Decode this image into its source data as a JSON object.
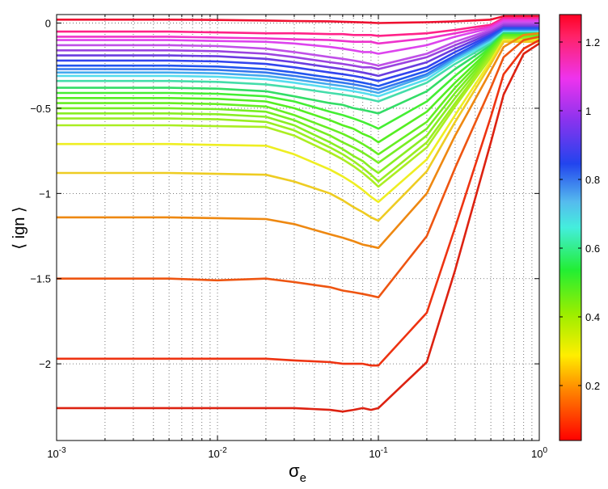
{
  "chart_data": {
    "type": "line",
    "xlabel_main": "σ",
    "xlabel_sub": "e",
    "ylabel": "⟨ ign ⟩",
    "xscale": "log",
    "xlim": [
      0.001,
      1
    ],
    "ylim": [
      -2.45,
      0.05
    ],
    "grid": true,
    "x_ticks": [
      {
        "value": 0.001,
        "base": "10",
        "exp": "-3"
      },
      {
        "value": 0.01,
        "base": "10",
        "exp": "-2"
      },
      {
        "value": 0.1,
        "base": "10",
        "exp": "-1"
      },
      {
        "value": 1,
        "base": "10",
        "exp": "0"
      }
    ],
    "y_ticks": [
      {
        "value": 0,
        "label": "0"
      },
      {
        "value": -0.5,
        "label": "−0.5"
      },
      {
        "value": -1,
        "label": "−1"
      },
      {
        "value": -1.5,
        "label": "−1.5"
      },
      {
        "value": -2,
        "label": "−2"
      }
    ],
    "colorbar": {
      "range": [
        0.04,
        1.28
      ],
      "ticks": [
        {
          "value": 0.2,
          "label": "0.2"
        },
        {
          "value": 0.4,
          "label": "0.4"
        },
        {
          "value": 0.6,
          "label": "0.6"
        },
        {
          "value": 0.8,
          "label": "0.8"
        },
        {
          "value": 1.0,
          "label": "1"
        },
        {
          "value": 1.2,
          "label": "1.2"
        }
      ],
      "colormap": "hsv (red → orange → yellow → green → cyan → blue → purple → magenta → red)"
    },
    "x": [
      0.001,
      0.002,
      0.003,
      0.005,
      0.01,
      0.02,
      0.03,
      0.05,
      0.06,
      0.07,
      0.08,
      0.09,
      0.1,
      0.2,
      0.3,
      0.5,
      0.6,
      0.8,
      1.0
    ],
    "series": [
      {
        "color": "#ee1030",
        "values": [
          0.02,
          0.02,
          0.02,
          0.02,
          0.018,
          0.015,
          0.012,
          0.01,
          0.008,
          0.006,
          0.004,
          0.002,
          0.0,
          0.005,
          0.01,
          0.02,
          0.04,
          0.04,
          0.04
        ]
      },
      {
        "color": "#ff2288",
        "values": [
          -0.05,
          -0.05,
          -0.05,
          -0.05,
          -0.055,
          -0.06,
          -0.06,
          -0.065,
          -0.065,
          -0.07,
          -0.07,
          -0.07,
          -0.075,
          -0.06,
          -0.04,
          -0.01,
          0.03,
          0.03,
          0.03
        ]
      },
      {
        "color": "#ee33cc",
        "values": [
          -0.08,
          -0.08,
          -0.08,
          -0.08,
          -0.085,
          -0.09,
          -0.095,
          -0.1,
          -0.105,
          -0.11,
          -0.11,
          -0.11,
          -0.12,
          -0.09,
          -0.06,
          -0.02,
          0.02,
          0.02,
          0.02
        ]
      },
      {
        "color": "#dd44ee",
        "values": [
          -0.1,
          -0.1,
          -0.1,
          -0.1,
          -0.105,
          -0.11,
          -0.12,
          -0.14,
          -0.15,
          -0.16,
          -0.17,
          -0.17,
          -0.18,
          -0.13,
          -0.08,
          -0.03,
          0.01,
          0.01,
          0.01
        ]
      },
      {
        "color": "#c050e8",
        "values": [
          -0.13,
          -0.13,
          -0.13,
          -0.13,
          -0.135,
          -0.15,
          -0.17,
          -0.2,
          -0.21,
          -0.22,
          -0.23,
          -0.24,
          -0.25,
          -0.18,
          -0.11,
          -0.04,
          0.0,
          0.0,
          0.0
        ]
      },
      {
        "color": "#9a44e0",
        "values": [
          -0.16,
          -0.16,
          -0.16,
          -0.16,
          -0.165,
          -0.18,
          -0.2,
          -0.23,
          -0.24,
          -0.25,
          -0.26,
          -0.26,
          -0.27,
          -0.2,
          -0.13,
          -0.05,
          -0.01,
          -0.01,
          -0.01
        ]
      },
      {
        "color": "#6a3ce0",
        "values": [
          -0.19,
          -0.19,
          -0.19,
          -0.19,
          -0.195,
          -0.21,
          -0.23,
          -0.26,
          -0.27,
          -0.28,
          -0.29,
          -0.3,
          -0.31,
          -0.23,
          -0.15,
          -0.06,
          -0.02,
          -0.02,
          -0.02
        ]
      },
      {
        "color": "#3344ee",
        "values": [
          -0.22,
          -0.22,
          -0.22,
          -0.22,
          -0.225,
          -0.24,
          -0.26,
          -0.29,
          -0.3,
          -0.31,
          -0.32,
          -0.33,
          -0.34,
          -0.26,
          -0.17,
          -0.07,
          -0.03,
          -0.03,
          -0.03
        ]
      },
      {
        "color": "#2255ee",
        "values": [
          -0.25,
          -0.25,
          -0.25,
          -0.25,
          -0.255,
          -0.27,
          -0.29,
          -0.32,
          -0.33,
          -0.34,
          -0.35,
          -0.36,
          -0.37,
          -0.28,
          -0.19,
          -0.08,
          -0.03,
          -0.03,
          -0.03
        ]
      },
      {
        "color": "#3377ee",
        "values": [
          -0.27,
          -0.27,
          -0.27,
          -0.27,
          -0.275,
          -0.29,
          -0.31,
          -0.34,
          -0.35,
          -0.36,
          -0.37,
          -0.38,
          -0.39,
          -0.3,
          -0.2,
          -0.09,
          -0.04,
          -0.04,
          -0.04
        ]
      },
      {
        "color": "#44aaee",
        "values": [
          -0.29,
          -0.29,
          -0.29,
          -0.29,
          -0.295,
          -0.31,
          -0.33,
          -0.36,
          -0.37,
          -0.38,
          -0.39,
          -0.4,
          -0.41,
          -0.31,
          -0.21,
          -0.1,
          -0.05,
          -0.05,
          -0.05
        ]
      },
      {
        "color": "#55ddee",
        "values": [
          -0.31,
          -0.31,
          -0.31,
          -0.31,
          -0.315,
          -0.33,
          -0.35,
          -0.38,
          -0.39,
          -0.4,
          -0.41,
          -0.42,
          -0.43,
          -0.33,
          -0.22,
          -0.11,
          -0.05,
          -0.05,
          -0.05
        ]
      },
      {
        "color": "#44ddaa",
        "values": [
          -0.34,
          -0.34,
          -0.34,
          -0.34,
          -0.345,
          -0.36,
          -0.38,
          -0.41,
          -0.42,
          -0.43,
          -0.44,
          -0.45,
          -0.46,
          -0.35,
          -0.24,
          -0.12,
          -0.06,
          -0.06,
          -0.06
        ]
      },
      {
        "color": "#33dd66",
        "values": [
          -0.38,
          -0.38,
          -0.38,
          -0.38,
          -0.385,
          -0.4,
          -0.43,
          -0.47,
          -0.48,
          -0.5,
          -0.51,
          -0.52,
          -0.53,
          -0.4,
          -0.27,
          -0.13,
          -0.06,
          -0.06,
          -0.06
        ]
      },
      {
        "color": "#44ee33",
        "values": [
          -0.41,
          -0.41,
          -0.41,
          -0.41,
          -0.415,
          -0.43,
          -0.46,
          -0.52,
          -0.54,
          -0.56,
          -0.58,
          -0.6,
          -0.62,
          -0.46,
          -0.31,
          -0.14,
          -0.07,
          -0.07,
          -0.07
        ]
      },
      {
        "color": "#55ee22",
        "values": [
          -0.44,
          -0.44,
          -0.44,
          -0.44,
          -0.445,
          -0.46,
          -0.5,
          -0.57,
          -0.6,
          -0.62,
          -0.65,
          -0.67,
          -0.7,
          -0.52,
          -0.35,
          -0.15,
          -0.07,
          -0.07,
          -0.07
        ]
      },
      {
        "color": "#66ee22",
        "values": [
          -0.47,
          -0.47,
          -0.47,
          -0.47,
          -0.475,
          -0.49,
          -0.54,
          -0.62,
          -0.65,
          -0.68,
          -0.71,
          -0.74,
          -0.77,
          -0.58,
          -0.38,
          -0.16,
          -0.08,
          -0.08,
          -0.08
        ]
      },
      {
        "color": "#77ee22",
        "values": [
          -0.5,
          -0.5,
          -0.5,
          -0.5,
          -0.505,
          -0.52,
          -0.57,
          -0.66,
          -0.7,
          -0.73,
          -0.76,
          -0.79,
          -0.82,
          -0.62,
          -0.41,
          -0.17,
          -0.08,
          -0.08,
          -0.08
        ]
      },
      {
        "color": "#88ee22",
        "values": [
          -0.53,
          -0.53,
          -0.53,
          -0.53,
          -0.535,
          -0.55,
          -0.6,
          -0.7,
          -0.74,
          -0.78,
          -0.81,
          -0.85,
          -0.88,
          -0.66,
          -0.44,
          -0.18,
          -0.09,
          -0.09,
          -0.09
        ]
      },
      {
        "color": "#99ee22",
        "values": [
          -0.56,
          -0.56,
          -0.56,
          -0.56,
          -0.565,
          -0.58,
          -0.63,
          -0.73,
          -0.77,
          -0.81,
          -0.85,
          -0.89,
          -0.93,
          -0.7,
          -0.47,
          -0.19,
          -0.09,
          -0.09,
          -0.09
        ]
      },
      {
        "color": "#aaee22",
        "values": [
          -0.6,
          -0.6,
          -0.6,
          -0.6,
          -0.605,
          -0.61,
          -0.66,
          -0.76,
          -0.8,
          -0.84,
          -0.88,
          -0.92,
          -0.96,
          -0.73,
          -0.49,
          -0.2,
          -0.1,
          -0.1,
          -0.1
        ]
      },
      {
        "color": "#eeee22",
        "values": [
          -0.71,
          -0.71,
          -0.71,
          -0.71,
          -0.715,
          -0.72,
          -0.77,
          -0.86,
          -0.9,
          -0.94,
          -0.98,
          -1.02,
          -1.05,
          -0.8,
          -0.54,
          -0.22,
          -0.1,
          -0.1,
          -0.1
        ]
      },
      {
        "color": "#eecc22",
        "values": [
          -0.88,
          -0.88,
          -0.88,
          -0.88,
          -0.885,
          -0.89,
          -0.93,
          -1.0,
          -1.04,
          -1.08,
          -1.11,
          -1.14,
          -1.16,
          -0.87,
          -0.58,
          -0.24,
          -0.11,
          -0.11,
          -0.11
        ]
      },
      {
        "color": "#ee8811",
        "values": [
          -1.14,
          -1.14,
          -1.14,
          -1.14,
          -1.145,
          -1.15,
          -1.18,
          -1.24,
          -1.26,
          -1.28,
          -1.3,
          -1.31,
          -1.32,
          -1.0,
          -0.66,
          -0.28,
          -0.14,
          -0.07,
          -0.06
        ]
      },
      {
        "color": "#ee5511",
        "values": [
          -1.5,
          -1.5,
          -1.5,
          -1.5,
          -1.51,
          -1.5,
          -1.52,
          -1.55,
          -1.57,
          -1.58,
          -1.59,
          -1.6,
          -1.61,
          -1.25,
          -0.85,
          -0.38,
          -0.2,
          -0.1,
          -0.08
        ]
      },
      {
        "color": "#ee3311",
        "values": [
          -1.97,
          -1.97,
          -1.97,
          -1.97,
          -1.97,
          -1.97,
          -1.98,
          -1.99,
          -2.0,
          -2.0,
          -2.0,
          -2.01,
          -2.01,
          -1.7,
          -1.2,
          -0.55,
          -0.3,
          -0.15,
          -0.1
        ]
      },
      {
        "color": "#dd2211",
        "values": [
          -2.26,
          -2.26,
          -2.26,
          -2.26,
          -2.26,
          -2.26,
          -2.26,
          -2.27,
          -2.28,
          -2.27,
          -2.26,
          -2.27,
          -2.26,
          -1.99,
          -1.45,
          -0.7,
          -0.42,
          -0.18,
          -0.12
        ]
      }
    ]
  }
}
